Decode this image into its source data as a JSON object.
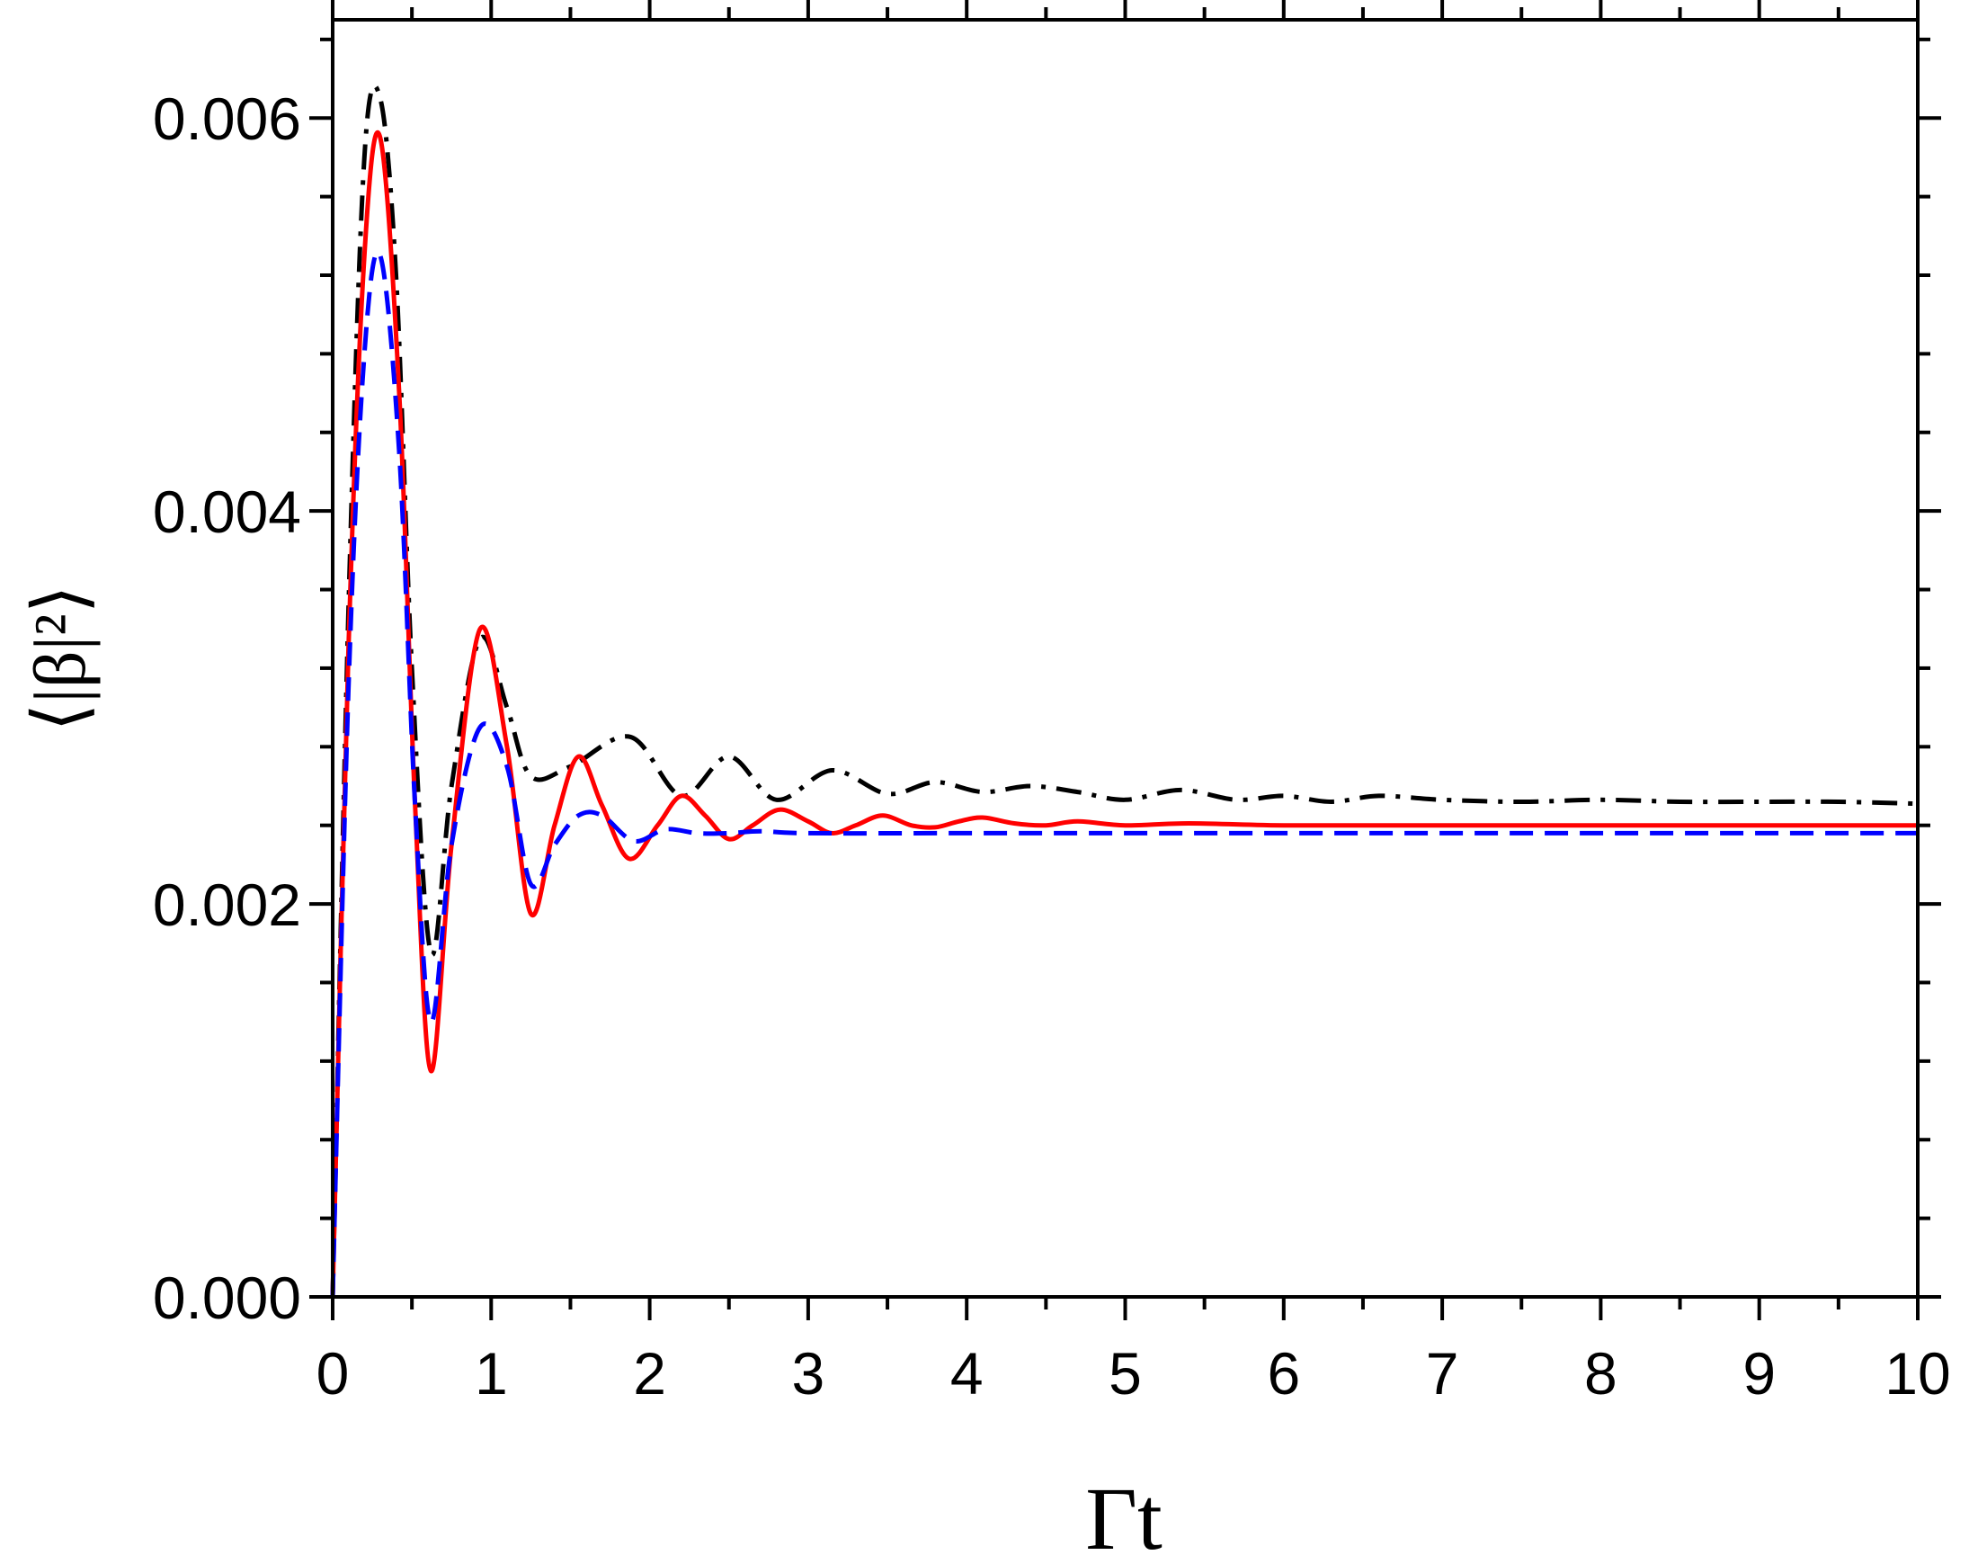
{
  "chart_data": {
    "type": "line",
    "title": "",
    "xlabel": "Γt",
    "ylabel": "⟨|β|²⟩",
    "xlim": [
      0,
      10
    ],
    "ylim": [
      0,
      0.0065
    ],
    "xticks": [
      0,
      1,
      2,
      3,
      4,
      5,
      6,
      7,
      8,
      9,
      10
    ],
    "xtick_labels": [
      "0",
      "1",
      "2",
      "3",
      "4",
      "5",
      "6",
      "7",
      "8",
      "9",
      "10"
    ],
    "yticks": [
      0,
      0.002,
      0.004,
      0.006
    ],
    "ytick_labels": [
      "0.000",
      "0.002",
      "0.004",
      "0.006"
    ],
    "grid": false,
    "legend": "none",
    "series": [
      {
        "style": "dash-dot",
        "color": "#000000",
        "x": [
          0,
          0.1,
          0.2,
          0.3,
          0.4,
          0.5,
          0.62,
          0.75,
          0.93,
          1.1,
          1.25,
          1.5,
          1.88,
          2.2,
          2.5,
          2.8,
          3.15,
          3.5,
          3.8,
          4.1,
          4.4,
          4.7,
          5.0,
          5.35,
          5.7,
          6.0,
          6.3,
          6.6,
          7.0,
          7.5,
          8.0,
          8.5,
          9.0,
          9.5,
          10
        ],
        "y": [
          0,
          0.0035,
          0.0058,
          0.0061,
          0.0052,
          0.0032,
          0.00175,
          0.0026,
          0.00335,
          0.003,
          0.00265,
          0.0027,
          0.00285,
          0.00255,
          0.00275,
          0.00253,
          0.00268,
          0.00256,
          0.00262,
          0.00257,
          0.0026,
          0.00257,
          0.00253,
          0.00258,
          0.00253,
          0.00255,
          0.00252,
          0.00255,
          0.00253,
          0.00252,
          0.00253,
          0.00252,
          0.00252,
          0.00252,
          0.00251
        ]
      },
      {
        "style": "solid",
        "color": "#ff0000",
        "x": [
          0,
          0.1,
          0.2,
          0.3,
          0.42,
          0.52,
          0.62,
          0.75,
          0.93,
          1.1,
          1.25,
          1.4,
          1.55,
          1.7,
          1.87,
          2.05,
          2.2,
          2.35,
          2.5,
          2.65,
          2.82,
          3.0,
          3.15,
          3.3,
          3.47,
          3.65,
          3.8,
          3.95,
          4.1,
          4.3,
          4.5,
          4.7,
          5.0,
          5.4,
          6.0,
          7.0,
          8.0,
          9.0,
          10
        ],
        "y": [
          0,
          0.0033,
          0.0053,
          0.0059,
          0.0046,
          0.0025,
          0.00115,
          0.0023,
          0.0034,
          0.0028,
          0.00195,
          0.0024,
          0.00275,
          0.0025,
          0.00223,
          0.0024,
          0.00255,
          0.00245,
          0.00233,
          0.0024,
          0.00248,
          0.00242,
          0.00236,
          0.0024,
          0.00245,
          0.0024,
          0.00239,
          0.00242,
          0.00244,
          0.00241,
          0.0024,
          0.00242,
          0.0024,
          0.00241,
          0.0024,
          0.0024,
          0.0024,
          0.0024,
          0.0024
        ]
      },
      {
        "style": "dashed",
        "color": "#0000ff",
        "x": [
          0,
          0.1,
          0.2,
          0.3,
          0.42,
          0.52,
          0.62,
          0.75,
          0.93,
          1.1,
          1.25,
          1.4,
          1.55,
          1.7,
          1.9,
          2.1,
          2.3,
          2.5,
          2.7,
          3.0,
          4.0,
          5.0,
          6.0,
          7.0,
          8.0,
          9.0,
          10
        ],
        "y": [
          0,
          0.0031,
          0.0048,
          0.0053,
          0.0043,
          0.0025,
          0.0014,
          0.0023,
          0.0029,
          0.0027,
          0.0021,
          0.0023,
          0.00245,
          0.00245,
          0.00232,
          0.00238,
          0.00236,
          0.00236,
          0.00237,
          0.00236,
          0.00236,
          0.00236,
          0.00236,
          0.00236,
          0.00236,
          0.00236,
          0.00236
        ]
      }
    ]
  }
}
